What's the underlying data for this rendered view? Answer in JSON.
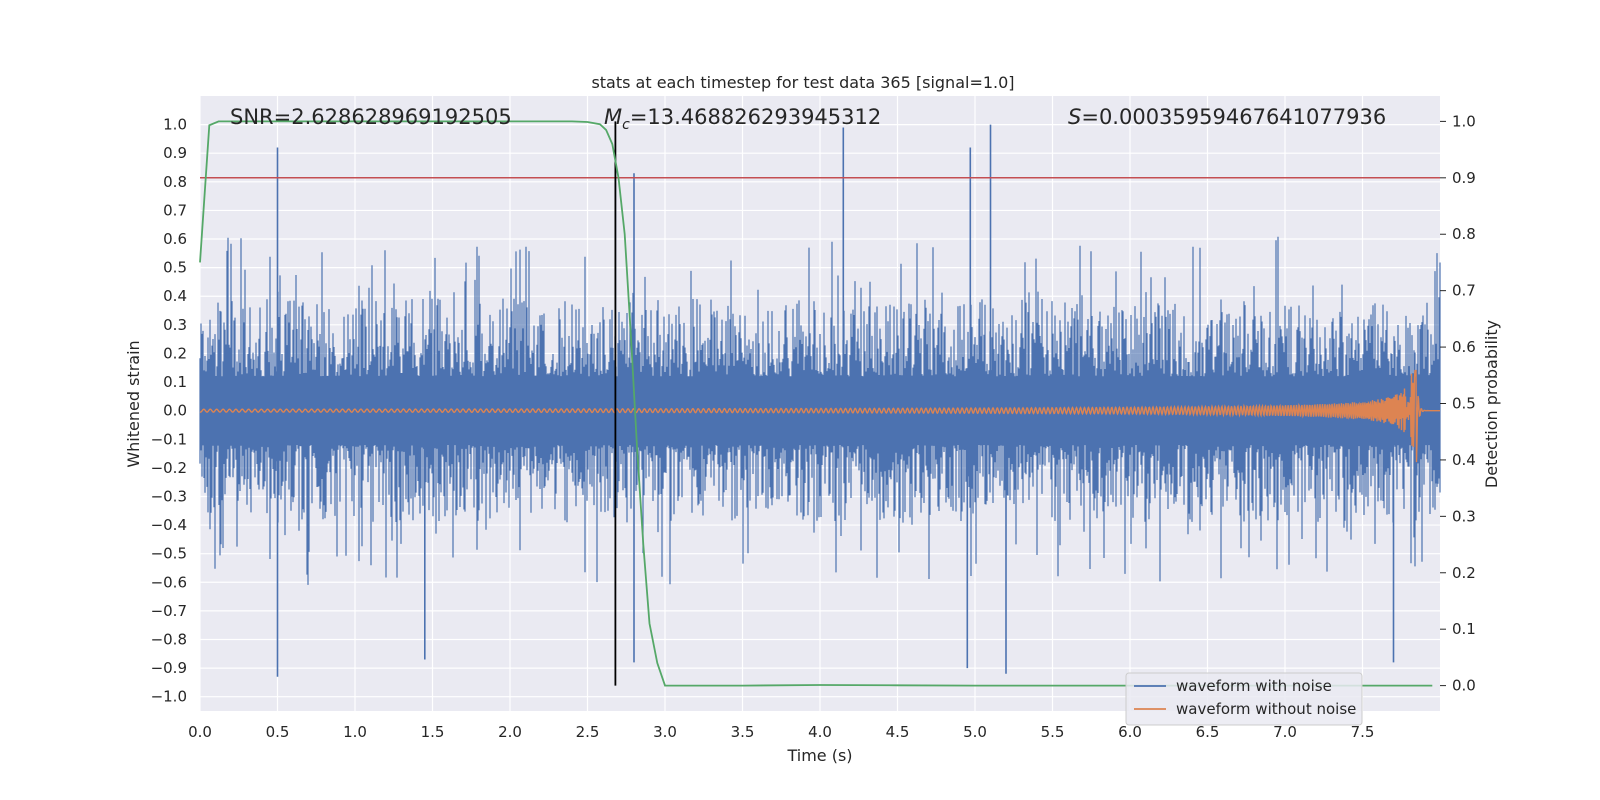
{
  "chart_data": {
    "type": "line",
    "title": "stats at each timestep for test data 365 [signal=1.0]",
    "xlabel": "Time (s)",
    "ylabel_left": "Whitened strain",
    "ylabel_right": "Detection probability",
    "xlim": [
      0.0,
      8.0
    ],
    "ylim_left": [
      -1.05,
      1.1
    ],
    "ylim_right": [
      -0.045,
      1.045
    ],
    "x_ticks": [
      "0.0",
      "0.5",
      "1.0",
      "1.5",
      "2.0",
      "2.5",
      "3.0",
      "3.5",
      "4.0",
      "4.5",
      "5.0",
      "5.5",
      "6.0",
      "6.5",
      "7.0",
      "7.5"
    ],
    "y_left_ticks": [
      "1.0",
      "0.9",
      "0.8",
      "0.7",
      "0.6",
      "0.5",
      "0.4",
      "0.3",
      "0.2",
      "0.1",
      "0.0",
      "−0.1",
      "−0.2",
      "−0.3",
      "−0.4",
      "−0.5",
      "−0.6",
      "−0.7",
      "−0.8",
      "−0.9",
      "−1.0"
    ],
    "y_right_ticks": [
      "1.0",
      "0.9",
      "0.8",
      "0.7",
      "0.6",
      "0.5",
      "0.4",
      "0.3",
      "0.2",
      "0.1",
      "0.0"
    ],
    "grid": true,
    "legend_position": "lower-right",
    "annotations": {
      "snr": "SNR=2.628628969192505",
      "mc_symbol": "M",
      "mc_sub": "c",
      "mc_value": "=13.468826293945312",
      "s_symbol": "S",
      "s_value": "=0.00035959467641077936"
    },
    "series": [
      {
        "name": "waveform with noise",
        "axis": "left",
        "color": "#4c72b0",
        "description_values": "dense noisy strain, amplitude envelope roughly +/-0.4 with peaks near +/-0.9",
        "peaks": [
          {
            "x": 0.5,
            "y": 0.92
          },
          {
            "x": 0.5,
            "y": -0.93
          },
          {
            "x": 1.45,
            "y": -0.87
          },
          {
            "x": 2.68,
            "y": 0.86
          },
          {
            "x": 2.8,
            "y": 0.83
          },
          {
            "x": 2.8,
            "y": -0.88
          },
          {
            "x": 4.15,
            "y": 0.99
          },
          {
            "x": 4.97,
            "y": 0.92
          },
          {
            "x": 5.1,
            "y": 1.0
          },
          {
            "x": 5.2,
            "y": -0.92
          },
          {
            "x": 4.95,
            "y": -0.9
          },
          {
            "x": 7.7,
            "y": -0.88
          }
        ]
      },
      {
        "name": "waveform without noise",
        "axis": "left",
        "color": "#dd8452",
        "chirp": {
          "start_amp": 0.005,
          "merger_time": 7.85,
          "merger_amp": 0.14,
          "min_amp": -0.18,
          "ringdown_end": 7.92
        }
      },
      {
        "name": "detection probability",
        "axis": "right",
        "color": "#55a868",
        "x": [
          0.0,
          0.06,
          0.12,
          0.5,
          1.0,
          1.5,
          2.0,
          2.4,
          2.5,
          2.58,
          2.62,
          2.66,
          2.7,
          2.74,
          2.78,
          2.82,
          2.86,
          2.9,
          2.95,
          3.0,
          3.5,
          4.0,
          4.5,
          5.0,
          6.0,
          7.0,
          7.95
        ],
        "y": [
          0.75,
          0.993,
          1.0,
          1.0,
          1.0,
          1.0,
          1.0,
          1.0,
          0.999,
          0.995,
          0.985,
          0.96,
          0.9,
          0.8,
          0.62,
          0.42,
          0.25,
          0.11,
          0.04,
          0.0,
          0.0,
          0.001,
          0.0005,
          0.0,
          0.0,
          0.0,
          0.0
        ]
      }
    ],
    "threshold_line": {
      "axis": "right",
      "y": 0.9,
      "color": "#c44e52"
    },
    "vertical_marker": {
      "x": 2.68,
      "color": "#000000"
    }
  }
}
